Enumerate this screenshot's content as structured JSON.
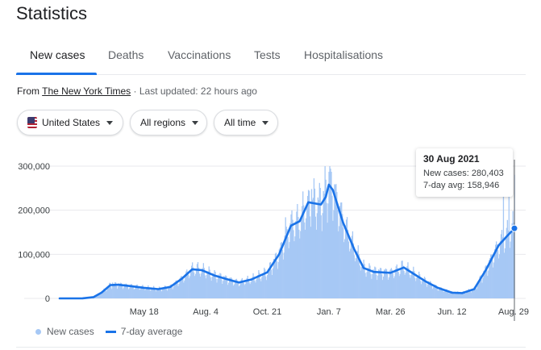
{
  "header": {
    "title": "Statistics"
  },
  "tabs": [
    {
      "label": "New cases",
      "active": true
    },
    {
      "label": "Deaths",
      "active": false
    },
    {
      "label": "Vaccinations",
      "active": false
    },
    {
      "label": "Tests",
      "active": false
    },
    {
      "label": "Hospitalisations",
      "active": false
    }
  ],
  "source": {
    "prefix": "From",
    "name": "The New York Times",
    "updated": "· Last updated: 22 hours ago"
  },
  "filters": {
    "country": "United States",
    "country_icon": "us-flag-icon",
    "region": "All regions",
    "time": "All time"
  },
  "tooltip": {
    "date": "30 Aug 2021",
    "new_cases_label": "New cases:",
    "new_cases": "280,403",
    "avg_label": "7-day avg:",
    "avg": "158,946"
  },
  "legend": {
    "bars": "New cases",
    "line": "7-day average"
  },
  "colors": {
    "accent": "#1a73e8",
    "bars": "#a6c8f5",
    "grid": "#e8eaed"
  },
  "chart_data": {
    "type": "bar",
    "title": "",
    "xlabel": "",
    "ylabel": "",
    "x_range": [
      "2020-02-01",
      "2021-08-30"
    ],
    "ylim": [
      0,
      300000
    ],
    "yticks": [
      "300,000",
      "200,000",
      "100,000",
      "0"
    ],
    "ytick_values": [
      300000,
      200000,
      100000,
      0
    ],
    "xticks": [
      {
        "label": "May 18",
        "date": "2020-05-18"
      },
      {
        "label": "Aug. 4",
        "date": "2020-08-04"
      },
      {
        "label": "Oct. 21",
        "date": "2020-10-21"
      },
      {
        "label": "Jan. 7",
        "date": "2021-01-07"
      },
      {
        "label": "Mar. 26",
        "date": "2021-03-26"
      },
      {
        "label": "Jun. 12",
        "date": "2021-06-12"
      },
      {
        "label": "Aug. 29",
        "date": "2021-08-29"
      }
    ],
    "grid": true,
    "legend_position": "bottom-left",
    "series": [
      {
        "name": "7-day average",
        "type": "line",
        "points": [
          [
            "2020-02-01",
            0
          ],
          [
            "2020-03-01",
            100
          ],
          [
            "2020-03-15",
            3000
          ],
          [
            "2020-03-25",
            13000
          ],
          [
            "2020-04-05",
            30000
          ],
          [
            "2020-04-15",
            31000
          ],
          [
            "2020-04-30",
            28000
          ],
          [
            "2020-05-18",
            24000
          ],
          [
            "2020-06-05",
            21000
          ],
          [
            "2020-06-20",
            26000
          ],
          [
            "2020-07-05",
            45000
          ],
          [
            "2020-07-18",
            66000
          ],
          [
            "2020-07-30",
            64000
          ],
          [
            "2020-08-15",
            52000
          ],
          [
            "2020-09-05",
            41000
          ],
          [
            "2020-09-15",
            36000
          ],
          [
            "2020-10-01",
            43000
          ],
          [
            "2020-10-21",
            59000
          ],
          [
            "2020-11-05",
            100000
          ],
          [
            "2020-11-20",
            165000
          ],
          [
            "2020-12-01",
            175000
          ],
          [
            "2020-12-12",
            218000
          ],
          [
            "2020-12-28",
            213000
          ],
          [
            "2021-01-03",
            230000
          ],
          [
            "2021-01-07",
            258000
          ],
          [
            "2021-01-12",
            246000
          ],
          [
            "2021-01-25",
            172000
          ],
          [
            "2021-02-08",
            112000
          ],
          [
            "2021-02-20",
            69000
          ],
          [
            "2021-03-05",
            60000
          ],
          [
            "2021-03-26",
            58000
          ],
          [
            "2021-04-12",
            70000
          ],
          [
            "2021-04-25",
            55000
          ],
          [
            "2021-05-10",
            38000
          ],
          [
            "2021-05-25",
            24000
          ],
          [
            "2021-06-12",
            13000
          ],
          [
            "2021-06-25",
            12000
          ],
          [
            "2021-07-10",
            21000
          ],
          [
            "2021-07-25",
            65000
          ],
          [
            "2021-08-10",
            120000
          ],
          [
            "2021-08-20",
            140000
          ],
          [
            "2021-08-30",
            158946
          ]
        ]
      },
      {
        "name": "New cases",
        "type": "bar",
        "highlight": {
          "date": "2021-08-30",
          "value": 280403
        },
        "peaks": [
          [
            "2020-04-08",
            36000
          ],
          [
            "2020-07-24",
            78000
          ],
          [
            "2020-11-13",
            184000
          ],
          [
            "2020-12-12",
            246000
          ],
          [
            "2020-12-16",
            248000
          ],
          [
            "2021-01-02",
            300000
          ],
          [
            "2021-01-08",
            300000
          ],
          [
            "2021-04-09",
            85000
          ],
          [
            "2021-08-16",
            240000
          ],
          [
            "2021-08-23",
            278000
          ],
          [
            "2021-08-30",
            280403
          ]
        ]
      }
    ]
  }
}
